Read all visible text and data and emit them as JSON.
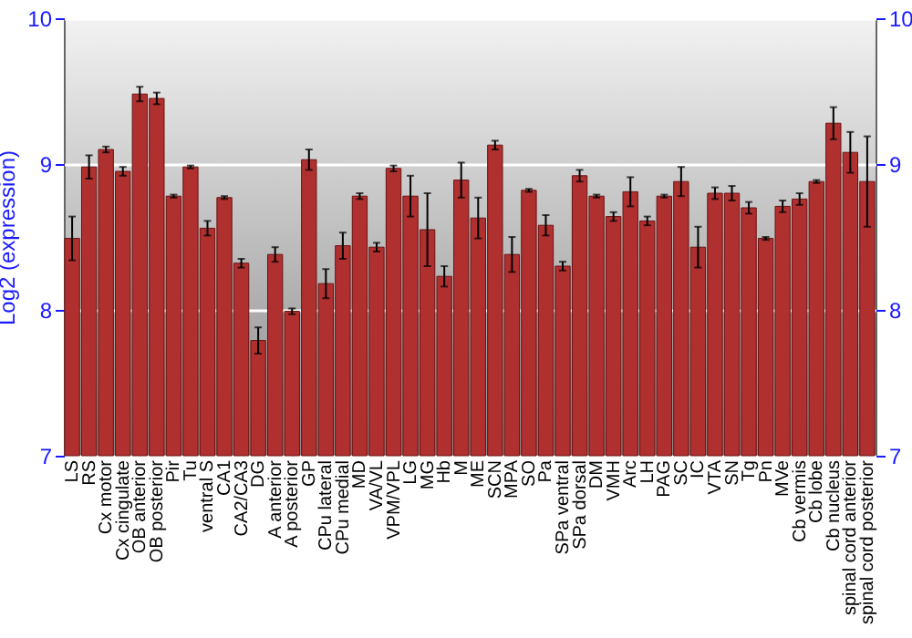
{
  "chart_data": {
    "type": "bar",
    "ylabel": "Log2 (expression)",
    "categories": [
      "LS",
      "RS",
      "Cx motor",
      "Cx cingulate",
      "OB anterior",
      "OB posterior",
      "Pir",
      "Tu",
      "ventral S",
      "CA1",
      "CA2/CA3",
      "DG",
      "A anterior",
      "A posterior",
      "GP",
      "CPu lateral",
      "CPu medial",
      "MD",
      "VA/VL",
      "VPM/VPL",
      "LG",
      "MG",
      "Hb",
      "M",
      "ME",
      "SCN",
      "MPA",
      "SO",
      "Pa",
      "SPa ventral",
      "SPa dorsal",
      "DM",
      "VMH",
      "Arc",
      "LH",
      "PAG",
      "SC",
      "IC",
      "VTA",
      "SN",
      "Tg",
      "Pn",
      "MVe",
      "Cb vermis",
      "Cb lobe",
      "Cb nucleus",
      "spinal cord anterior",
      "spinal cord posterior"
    ],
    "series": [
      {
        "color": "#b03030",
        "values": [
          8.49,
          8.98,
          9.1,
          8.95,
          9.48,
          9.45,
          8.78,
          8.98,
          8.56,
          8.77,
          8.32,
          7.79,
          8.38,
          7.99,
          9.03,
          8.18,
          8.44,
          8.78,
          8.43,
          8.97,
          8.78,
          8.55,
          8.23,
          8.89,
          8.63,
          9.13,
          8.38,
          8.82,
          8.58,
          8.3,
          8.92,
          8.78,
          8.64,
          8.81,
          8.61,
          8.78,
          8.88,
          8.43,
          8.8,
          8.8,
          8.7,
          8.49,
          8.71,
          8.76,
          8.88,
          9.28,
          9.08,
          8.88
        ],
        "errors": [
          0.15,
          0.08,
          0.02,
          0.03,
          0.05,
          0.04,
          0.01,
          0.01,
          0.05,
          0.01,
          0.03,
          0.09,
          0.05,
          0.02,
          0.07,
          0.1,
          0.09,
          0.02,
          0.03,
          0.02,
          0.14,
          0.25,
          0.07,
          0.12,
          0.14,
          0.03,
          0.12,
          0.01,
          0.07,
          0.03,
          0.04,
          0.01,
          0.03,
          0.1,
          0.03,
          0.01,
          0.1,
          0.14,
          0.04,
          0.05,
          0.04,
          0.01,
          0.04,
          0.04,
          0.01,
          0.11,
          0.14,
          0.31
        ]
      }
    ],
    "ylim": [
      7,
      10
    ],
    "yticks": [
      7,
      8,
      9,
      10
    ],
    "y2lim": [
      7,
      10
    ],
    "y2ticks": [
      7,
      8,
      9,
      10
    ],
    "grid": "y"
  }
}
